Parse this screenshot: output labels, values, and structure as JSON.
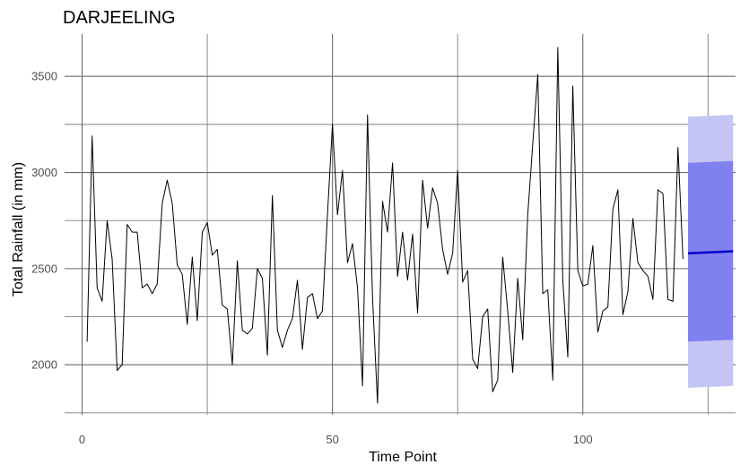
{
  "chart_data": {
    "type": "line",
    "title": "DARJEELING",
    "xlabel": "Time Point",
    "ylabel": "Total Rainfall (in mm)",
    "xlim": [
      -3.5,
      130.5
    ],
    "ylim": [
      1740,
      3720
    ],
    "x_ticks": [
      0,
      50,
      100
    ],
    "x_tick_labels": [
      "0",
      "50",
      "100"
    ],
    "y_ticks": [
      2000,
      2500,
      3000,
      3500
    ],
    "y_tick_labels": [
      "2000",
      "2500",
      "3000",
      "3500"
    ],
    "grid": true,
    "series": [
      {
        "color": "#000000",
        "x": [
          1,
          2,
          3,
          4,
          5,
          6,
          7,
          8,
          9,
          10,
          11,
          12,
          13,
          14,
          15,
          16,
          17,
          18,
          19,
          20,
          21,
          22,
          23,
          24,
          25,
          26,
          27,
          28,
          29,
          30,
          31,
          32,
          33,
          34,
          35,
          36,
          37,
          38,
          39,
          40,
          41,
          42,
          43,
          44,
          45,
          46,
          47,
          48,
          49,
          50,
          51,
          52,
          53,
          54,
          55,
          56,
          57,
          58,
          59,
          60,
          61,
          62,
          63,
          64,
          65,
          66,
          67,
          68,
          69,
          70,
          71,
          72,
          73,
          74,
          75,
          76,
          77,
          78,
          79,
          80,
          81,
          82,
          83,
          84,
          85,
          86,
          87,
          88,
          89,
          90,
          91,
          92,
          93,
          94,
          95,
          96,
          97,
          98,
          99,
          100,
          101,
          102,
          103,
          104,
          105,
          106,
          107,
          108,
          109,
          110,
          111,
          112,
          113,
          114,
          115,
          116,
          117,
          118,
          119,
          120
        ],
        "y": [
          2120,
          3190,
          2400,
          2330,
          2750,
          2550,
          1970,
          2000,
          2730,
          2690,
          2690,
          2400,
          2420,
          2370,
          2420,
          2840,
          2960,
          2840,
          2520,
          2470,
          2210,
          2560,
          2230,
          2690,
          2740,
          2570,
          2600,
          2310,
          2290,
          2000,
          2540,
          2180,
          2160,
          2190,
          2500,
          2450,
          2050,
          2880,
          2180,
          2090,
          2180,
          2240,
          2440,
          2080,
          2350,
          2370,
          2240,
          2280,
          2780,
          3250,
          2780,
          3010,
          2530,
          2630,
          2400,
          1890,
          3300,
          2350,
          1800,
          2850,
          2690,
          3050,
          2460,
          2690,
          2440,
          2680,
          2270,
          2960,
          2710,
          2920,
          2840,
          2600,
          2470,
          2580,
          3010,
          2430,
          2490,
          2030,
          1980,
          2250,
          2290,
          1860,
          1920,
          2560,
          2280,
          1960,
          2450,
          2130,
          2780,
          3150,
          3510,
          2370,
          2390,
          1920,
          3650,
          2440,
          2040,
          3450,
          2490,
          2410,
          2420,
          2620,
          2170,
          2280,
          2300,
          2810,
          2910,
          2260,
          2380,
          2760,
          2530,
          2490,
          2460,
          2340,
          2910,
          2890,
          2340,
          2330,
          3130,
          2550
        ]
      }
    ],
    "forecast": {
      "x": [
        121,
        130
      ],
      "mean": [
        2580,
        2590
      ],
      "lower_80": [
        2120,
        2130
      ],
      "upper_80": [
        3050,
        3060
      ],
      "lower_95": [
        1880,
        1890
      ],
      "upper_95": [
        3290,
        3300
      ],
      "colors": {
        "band_95": "#c5c5f5",
        "band_80": "#8080ee",
        "mean_line": "#0000cc"
      }
    }
  }
}
